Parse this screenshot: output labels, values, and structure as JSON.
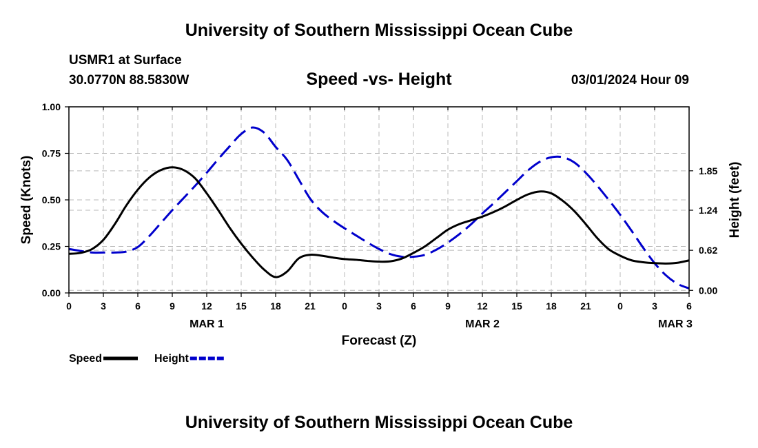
{
  "header": {
    "title": "University of Southern Mississippi Ocean Cube",
    "station": "USMR1 at Surface",
    "coords": "30.0770N  88.5830W",
    "subtitle": "Speed -vs- Height",
    "datetime": "03/01/2024 Hour 09"
  },
  "footer": {
    "title": "University of Southern Mississippi Ocean Cube"
  },
  "chart_data": {
    "type": "line",
    "title": "Speed -vs- Height",
    "xlabel": "Forecast (Z)",
    "ylabel": "Speed (Knots)",
    "ylabel_right": "Height (feet)",
    "x_range": [
      0,
      54
    ],
    "y_range": [
      0,
      1
    ],
    "y_right_range": [
      -0.04,
      2.84
    ],
    "x_tick_values": [
      0,
      3,
      6,
      9,
      12,
      15,
      18,
      21,
      24,
      27,
      30,
      33,
      36,
      39,
      42,
      45,
      48,
      51,
      54
    ],
    "x_tick_labels": [
      "0",
      "3",
      "6",
      "9",
      "12",
      "15",
      "18",
      "21",
      "0",
      "3",
      "6",
      "9",
      "12",
      "15",
      "18",
      "21",
      "0",
      "3",
      "6"
    ],
    "day_labels": [
      {
        "x": 12,
        "label": "MAR 1"
      },
      {
        "x": 36,
        "label": "MAR 2"
      },
      {
        "x": 52.8,
        "label": "MAR 3"
      }
    ],
    "y_ticks": [
      {
        "value": 0,
        "label": "0.00"
      },
      {
        "value": 0.25,
        "label": "0.25"
      },
      {
        "value": 0.5,
        "label": "0.50"
      },
      {
        "value": 0.75,
        "label": "0.75"
      },
      {
        "value": 1.0,
        "label": "1.00"
      }
    ],
    "y_right_ticks": [
      {
        "value": 0.0,
        "label": "0.00"
      },
      {
        "value": 0.62,
        "label": "0.62"
      },
      {
        "value": 1.24,
        "label": "1.24"
      },
      {
        "value": 1.85,
        "label": "1.85"
      }
    ],
    "grid": true,
    "series": [
      {
        "name": "Speed",
        "color": "#000000",
        "dash": "solid",
        "axis": "left",
        "x": [
          0,
          1,
          2,
          3,
          4,
          5,
          6,
          7,
          8,
          9,
          10,
          11,
          12,
          13,
          14,
          15,
          16,
          17,
          18,
          19,
          20,
          21,
          22,
          23,
          24,
          25,
          26,
          27,
          28,
          29,
          30,
          31,
          32,
          33,
          34,
          35,
          36,
          37,
          38,
          39,
          40,
          41,
          42,
          43,
          44,
          45,
          46,
          47,
          48,
          49,
          50,
          51,
          52,
          53,
          54
        ],
        "values": [
          0.21,
          0.215,
          0.235,
          0.285,
          0.37,
          0.47,
          0.555,
          0.62,
          0.66,
          0.675,
          0.66,
          0.615,
          0.535,
          0.445,
          0.35,
          0.265,
          0.19,
          0.125,
          0.085,
          0.115,
          0.185,
          0.205,
          0.2,
          0.19,
          0.182,
          0.178,
          0.172,
          0.168,
          0.17,
          0.185,
          0.215,
          0.25,
          0.295,
          0.34,
          0.37,
          0.39,
          0.41,
          0.435,
          0.465,
          0.5,
          0.53,
          0.545,
          0.535,
          0.495,
          0.44,
          0.37,
          0.295,
          0.235,
          0.2,
          0.175,
          0.165,
          0.16,
          0.158,
          0.162,
          0.175
        ]
      },
      {
        "name": "Height",
        "color": "#0000cc",
        "dash": "dashed",
        "axis": "right",
        "x": [
          0,
          1,
          2,
          3,
          4,
          5,
          6,
          7,
          8,
          9,
          10,
          11,
          12,
          13,
          14,
          15,
          16,
          17,
          18,
          19,
          20,
          21,
          22,
          23,
          24,
          25,
          26,
          27,
          28,
          29,
          30,
          31,
          32,
          33,
          34,
          35,
          36,
          37,
          38,
          39,
          40,
          41,
          42,
          43,
          44,
          45,
          46,
          47,
          48,
          49,
          50,
          51,
          52,
          53,
          54
        ],
        "values": [
          0.64,
          0.61,
          0.585,
          0.585,
          0.585,
          0.6,
          0.67,
          0.84,
          1.04,
          1.24,
          1.43,
          1.62,
          1.82,
          2.03,
          2.23,
          2.42,
          2.52,
          2.44,
          2.22,
          2.02,
          1.72,
          1.42,
          1.22,
          1.08,
          0.96,
          0.85,
          0.74,
          0.64,
          0.56,
          0.52,
          0.52,
          0.55,
          0.63,
          0.74,
          0.87,
          1.02,
          1.19,
          1.35,
          1.52,
          1.69,
          1.86,
          1.99,
          2.06,
          2.06,
          1.98,
          1.82,
          1.62,
          1.4,
          1.17,
          0.92,
          0.66,
          0.42,
          0.23,
          0.1,
          0.03
        ]
      }
    ]
  }
}
